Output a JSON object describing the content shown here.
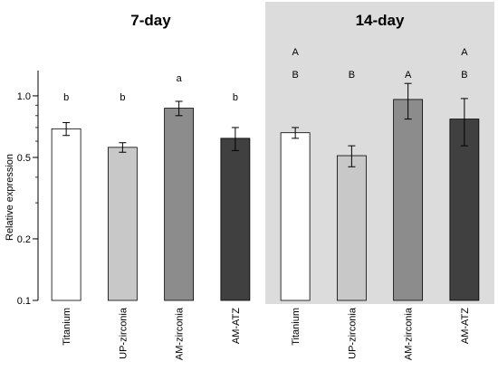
{
  "chart_data": {
    "type": "bar",
    "ylabel": "Relative expression",
    "yscale": "log",
    "ylim": [
      0.1,
      1.2
    ],
    "yticks": [
      0.1,
      0.2,
      0.5,
      1.0
    ],
    "ytick_labels": [
      "0.1",
      "0.2",
      "0.5",
      "1.0"
    ],
    "grid": false,
    "panels": [
      {
        "title": "7-day",
        "shaded": false,
        "categories": [
          "Titanium",
          "UP-zirconia",
          "AM-zirconia",
          "AM-ATZ"
        ],
        "values": [
          0.69,
          0.56,
          0.87,
          0.62
        ],
        "errors": [
          0.05,
          0.03,
          0.07,
          0.08
        ],
        "colors": [
          "#ffffff",
          "#c8c8c8",
          "#8c8c8c",
          "#404040"
        ],
        "significance": [
          [
            "b"
          ],
          [
            "b"
          ],
          [
            "a"
          ],
          [
            "b"
          ]
        ]
      },
      {
        "title": "14-day",
        "shaded": true,
        "shade_color": "#dcdcdc",
        "categories": [
          "Titanium",
          "UP-zirconia",
          "AM-zirconia",
          "AM-ATZ"
        ],
        "values": [
          0.66,
          0.51,
          0.96,
          0.77
        ],
        "errors": [
          0.04,
          0.06,
          0.19,
          0.2
        ],
        "colors": [
          "#ffffff",
          "#c8c8c8",
          "#8c8c8c",
          "#404040"
        ],
        "significance": [
          [
            "A",
            "B"
          ],
          [
            "B"
          ],
          [
            "A"
          ],
          [
            "A",
            "B"
          ]
        ]
      }
    ]
  }
}
